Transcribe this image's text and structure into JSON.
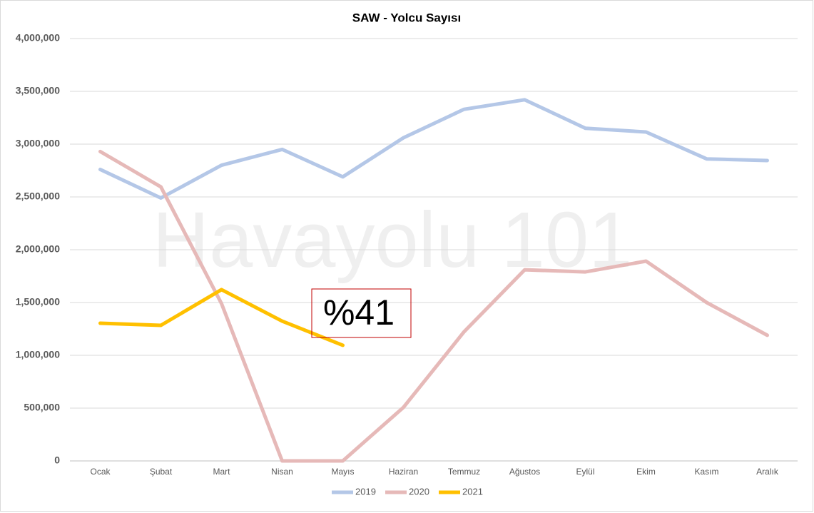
{
  "chart_data": {
    "type": "line",
    "title": "SAW - Yolcu Sayısı",
    "categories": [
      "Ocak",
      "Şubat",
      "Mart",
      "Nisan",
      "Mayıs",
      "Haziran",
      "Temmuz",
      "Ağustos",
      "Eylül",
      "Ekim",
      "Kasım",
      "Aralık"
    ],
    "series": [
      {
        "name": "2019",
        "color": "#b4c7e7",
        "values": [
          2760000,
          2490000,
          2800000,
          2950000,
          2690000,
          3060000,
          3330000,
          3420000,
          3150000,
          3115000,
          2860000,
          2845000
        ]
      },
      {
        "name": "2020",
        "color": "#e6b9b8",
        "values": [
          2930000,
          2595000,
          1490000,
          0,
          0,
          507000,
          1223000,
          1810000,
          1790000,
          1892000,
          1500000,
          1190000
        ]
      },
      {
        "name": "2021",
        "color": "#ffc000",
        "values": [
          1304000,
          1284000,
          1622000,
          1324000,
          1095000,
          null,
          null,
          null,
          null,
          null,
          null,
          null
        ]
      }
    ],
    "ylim": [
      0,
      4000000
    ],
    "yticks": [
      0,
      {
        "value": 500000,
        "label": "500,000"
      },
      {
        "value": 1000000,
        "label": "1,000,000"
      },
      {
        "value": 1500000,
        "label": "1,500,000"
      },
      {
        "value": 2000000,
        "label": "2,000,000"
      },
      {
        "value": 2500000,
        "label": "2,500,000"
      },
      {
        "value": 3000000,
        "label": "3,000,000"
      },
      {
        "value": 3500000,
        "label": "3,500,000"
      },
      {
        "value": 4000000,
        "label": "4,000,000"
      }
    ],
    "grid": true,
    "legend": "bottom",
    "annotations": [
      "Havayolu 101",
      "%41"
    ]
  }
}
